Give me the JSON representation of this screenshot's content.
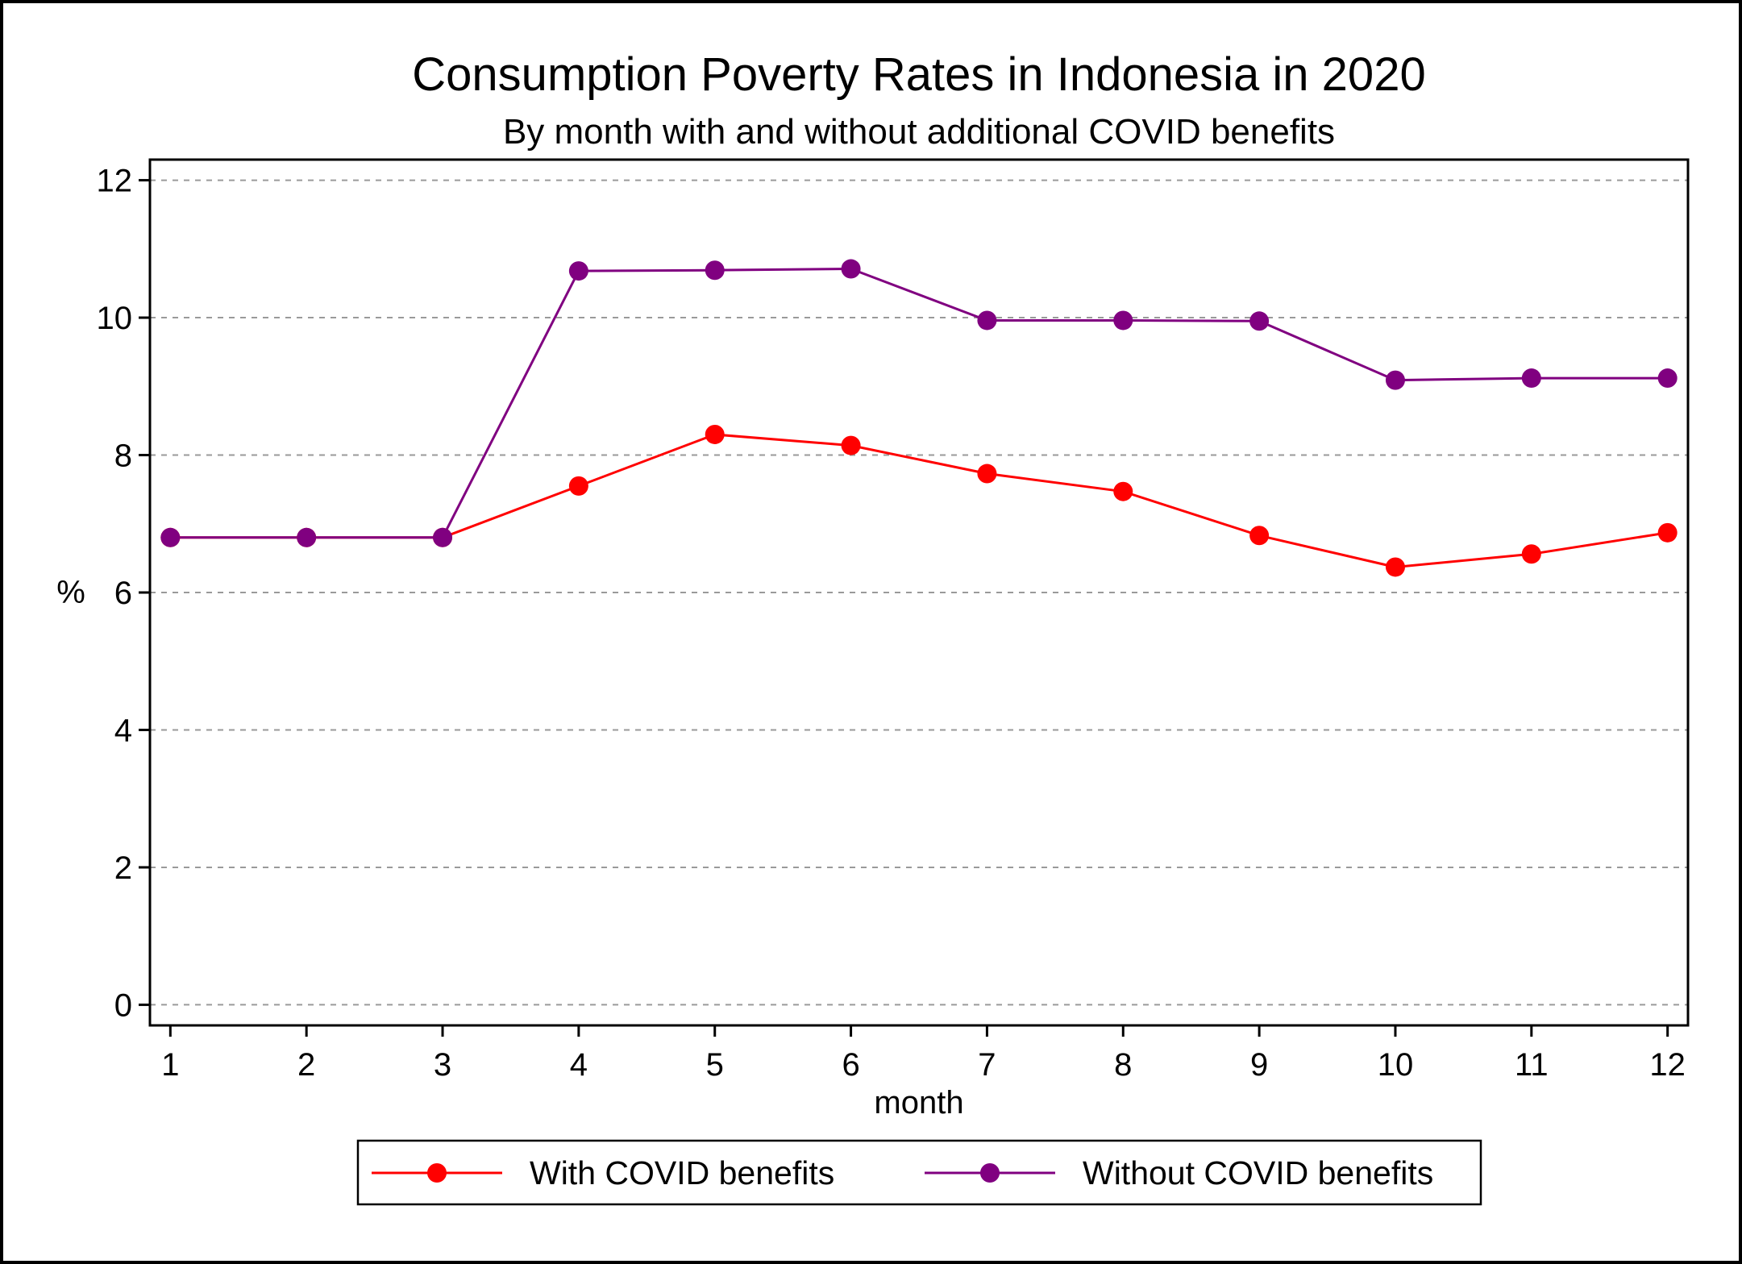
{
  "chart_data": {
    "type": "line",
    "title": "Consumption Poverty Rates in Indonesia in 2020",
    "subtitle": "By month with and without additional COVID benefits",
    "xlabel": "month",
    "ylabel": "%",
    "x": [
      1,
      2,
      3,
      4,
      5,
      6,
      7,
      8,
      9,
      10,
      11,
      12
    ],
    "x_tick_labels": [
      "1",
      "2",
      "3",
      "4",
      "5",
      "6",
      "7",
      "8",
      "9",
      "10",
      "11",
      "12"
    ],
    "y_ticks": [
      0,
      2,
      4,
      6,
      8,
      10,
      12
    ],
    "y_tick_labels": [
      "0",
      "2",
      "4",
      "6",
      "8",
      "10",
      "12"
    ],
    "xlim": [
      0.85,
      12.15
    ],
    "ylim": [
      -0.3,
      12.3
    ],
    "grid": "horizontal dashed",
    "legend_position": "bottom",
    "series": [
      {
        "name": "With COVID benefits",
        "color": "#ff0000",
        "values": [
          6.8,
          6.8,
          6.8,
          7.55,
          8.3,
          8.14,
          7.73,
          7.47,
          6.83,
          6.37,
          6.56,
          6.87
        ]
      },
      {
        "name": "Without COVID benefits",
        "color": "#800080",
        "values": [
          6.8,
          6.8,
          6.8,
          10.68,
          10.69,
          10.71,
          9.96,
          9.96,
          9.95,
          9.09,
          9.12,
          9.12
        ]
      }
    ]
  }
}
